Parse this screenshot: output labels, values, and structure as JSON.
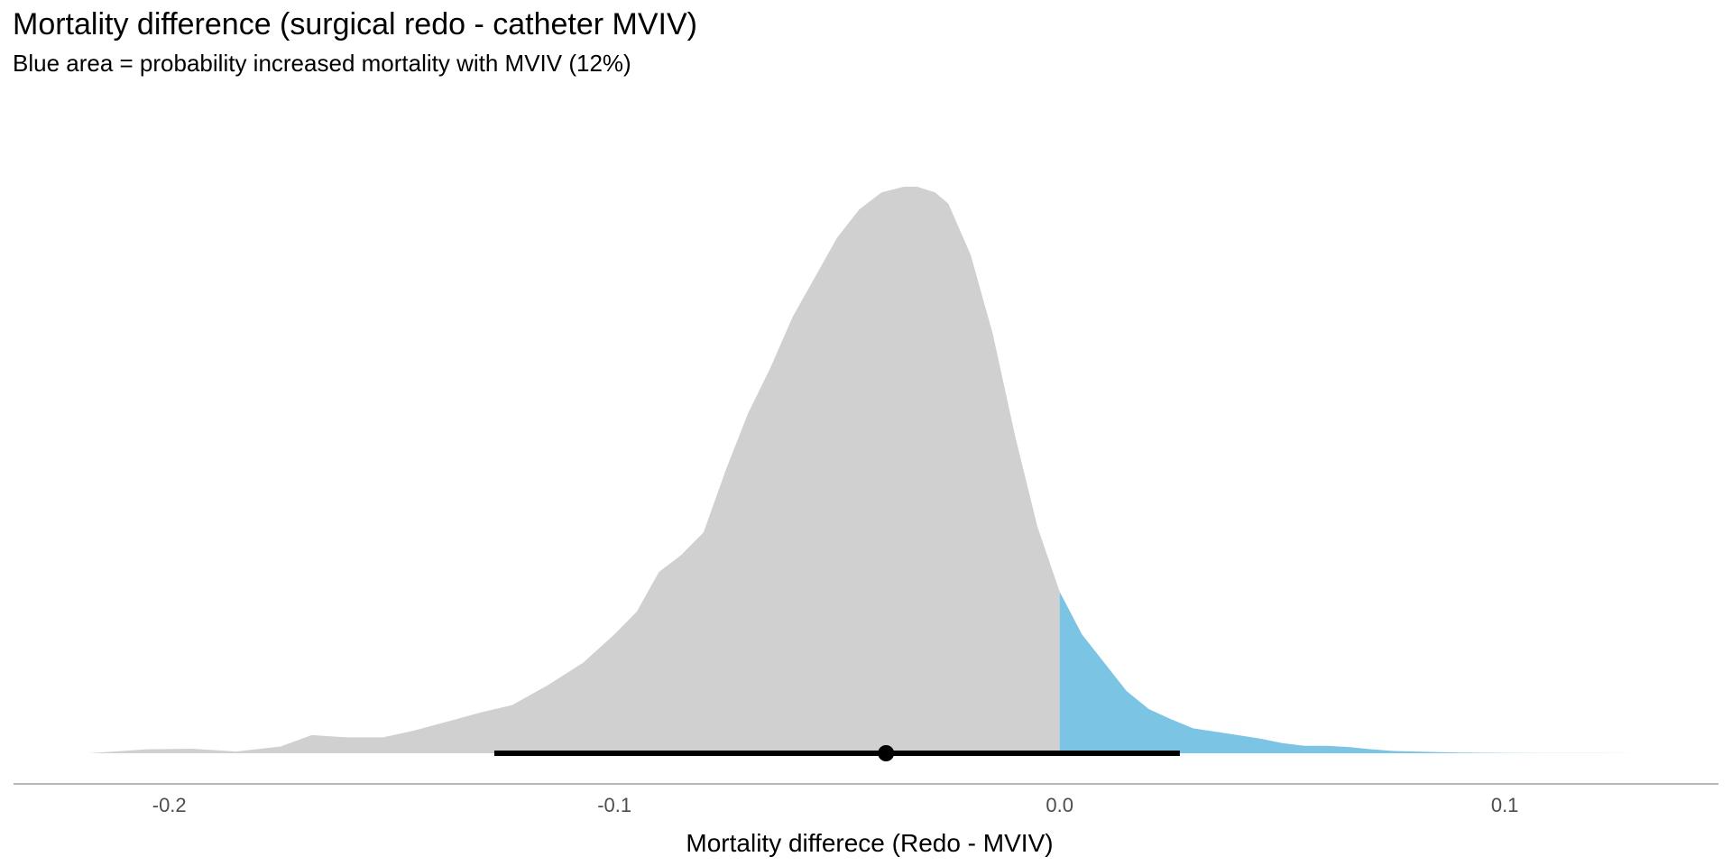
{
  "chart_data": {
    "type": "area",
    "title": "Mortality difference (surgical redo - catheter MVIV)",
    "subtitle": "Blue area = probability increased mortality with MVIV (12%)",
    "xlabel": "Mortality differece (Redo - MVIV)",
    "xlim": [
      -0.235,
      0.148
    ],
    "x_ticks": [
      -0.2,
      -0.1,
      0.0,
      0.1
    ],
    "x_tick_labels": [
      "-0.2",
      "-0.1",
      "0.0",
      "0.1"
    ],
    "grid": false,
    "density": {
      "x": [
        -0.218,
        -0.205,
        -0.195,
        -0.185,
        -0.175,
        -0.168,
        -0.16,
        -0.152,
        -0.145,
        -0.138,
        -0.13,
        -0.123,
        -0.115,
        -0.107,
        -0.1,
        -0.095,
        -0.09,
        -0.085,
        -0.08,
        -0.075,
        -0.07,
        -0.065,
        -0.06,
        -0.055,
        -0.05,
        -0.045,
        -0.04,
        -0.035,
        -0.032,
        -0.028,
        -0.025,
        -0.02,
        -0.015,
        -0.01,
        -0.005,
        0.0,
        0.005,
        0.01,
        0.015,
        0.02,
        0.025,
        0.03,
        0.035,
        0.04,
        0.045,
        0.05,
        0.055,
        0.06,
        0.065,
        0.07,
        0.075,
        0.08,
        0.085,
        0.09,
        0.095,
        0.1,
        0.11,
        0.12,
        0.13
      ],
      "y": [
        0.0,
        0.007,
        0.008,
        0.003,
        0.012,
        0.032,
        0.028,
        0.028,
        0.04,
        0.055,
        0.072,
        0.085,
        0.12,
        0.16,
        0.21,
        0.25,
        0.32,
        0.35,
        0.39,
        0.5,
        0.6,
        0.68,
        0.77,
        0.84,
        0.91,
        0.96,
        0.99,
        1.0,
        1.0,
        0.99,
        0.97,
        0.88,
        0.74,
        0.56,
        0.4,
        0.285,
        0.21,
        0.16,
        0.11,
        0.078,
        0.06,
        0.044,
        0.038,
        0.032,
        0.026,
        0.018,
        0.013,
        0.013,
        0.011,
        0.007,
        0.004,
        0.003,
        0.002,
        0.0012,
        0.0008,
        0.0005,
        0.0002,
        0.0001,
        0.0
      ]
    },
    "threshold": 0.0,
    "colors": {
      "below_threshold": "#d0d0d0",
      "above_threshold": "#7cc4e4",
      "interval": "#000000",
      "axis": "#a0a0a0"
    },
    "interval": {
      "low": -0.127,
      "high": 0.027,
      "point": -0.039
    },
    "probability_above_threshold": 0.12
  }
}
